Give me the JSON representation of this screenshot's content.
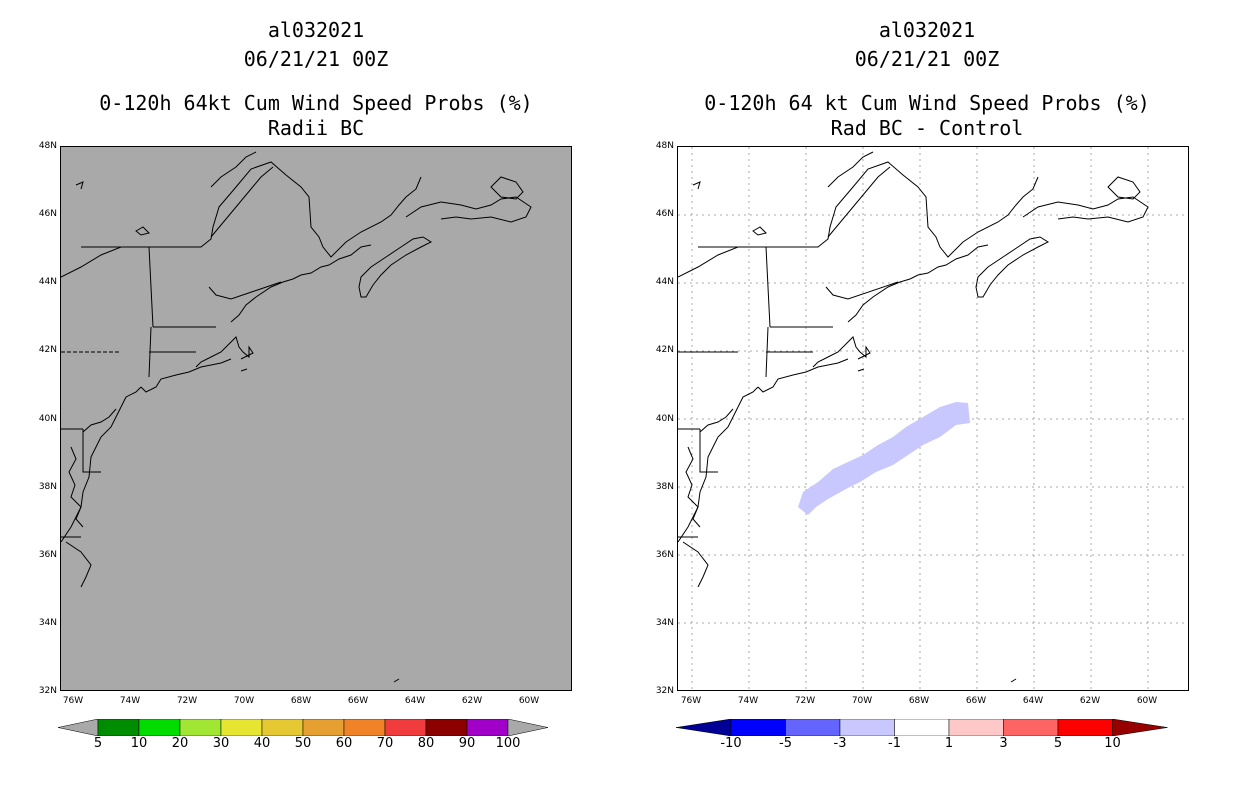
{
  "left_panel": {
    "title_lines": [
      "al032021",
      "06/21/21 00Z"
    ],
    "subtitle_lines": [
      "0-120h 64kt Cum Wind Speed Probs (%)",
      "Radii BC"
    ],
    "lat_labels": [
      "48N",
      "46N",
      "44N",
      "42N",
      "40N",
      "38N",
      "36N",
      "34N",
      "32N"
    ],
    "lon_labels": [
      "76W",
      "74W",
      "72W",
      "70W",
      "68W",
      "66W",
      "64W",
      "62W",
      "60W"
    ],
    "background_color": "#a9a9a9",
    "colorbar": {
      "colors": [
        "#a9a9a9",
        "#008c00",
        "#00dc00",
        "#a0e632",
        "#e6e632",
        "#e6c832",
        "#e6a032",
        "#f08228",
        "#f03c3c",
        "#8c0000",
        "#a000c8",
        "#a9a9a9"
      ],
      "labels": [
        "5",
        "10",
        "20",
        "30",
        "40",
        "50",
        "60",
        "70",
        "80",
        "90",
        "100"
      ]
    }
  },
  "right_panel": {
    "title_lines": [
      "al032021",
      "06/21/21 00Z"
    ],
    "subtitle_lines": [
      "0-120h 64 kt Cum Wind Speed Probs (%)",
      "Rad BC - Control"
    ],
    "lat_labels": [
      "48N",
      "46N",
      "44N",
      "42N",
      "40N",
      "38N",
      "36N",
      "34N",
      "32N"
    ],
    "lon_labels": [
      "76W",
      "74W",
      "72W",
      "70W",
      "68W",
      "66W",
      "64W",
      "62W",
      "60W"
    ],
    "background_color": "#ffffff",
    "difference_shading_color": "#c8c8ff",
    "colorbar": {
      "colors": [
        "#000096",
        "#0000ff",
        "#6464ff",
        "#c8c8ff",
        "#ffffff",
        "#ffc8c8",
        "#ff6464",
        "#ff0000",
        "#960000"
      ],
      "labels": [
        "-10",
        "-5",
        "-3",
        "-1",
        "1",
        "3",
        "5",
        "10"
      ]
    }
  }
}
